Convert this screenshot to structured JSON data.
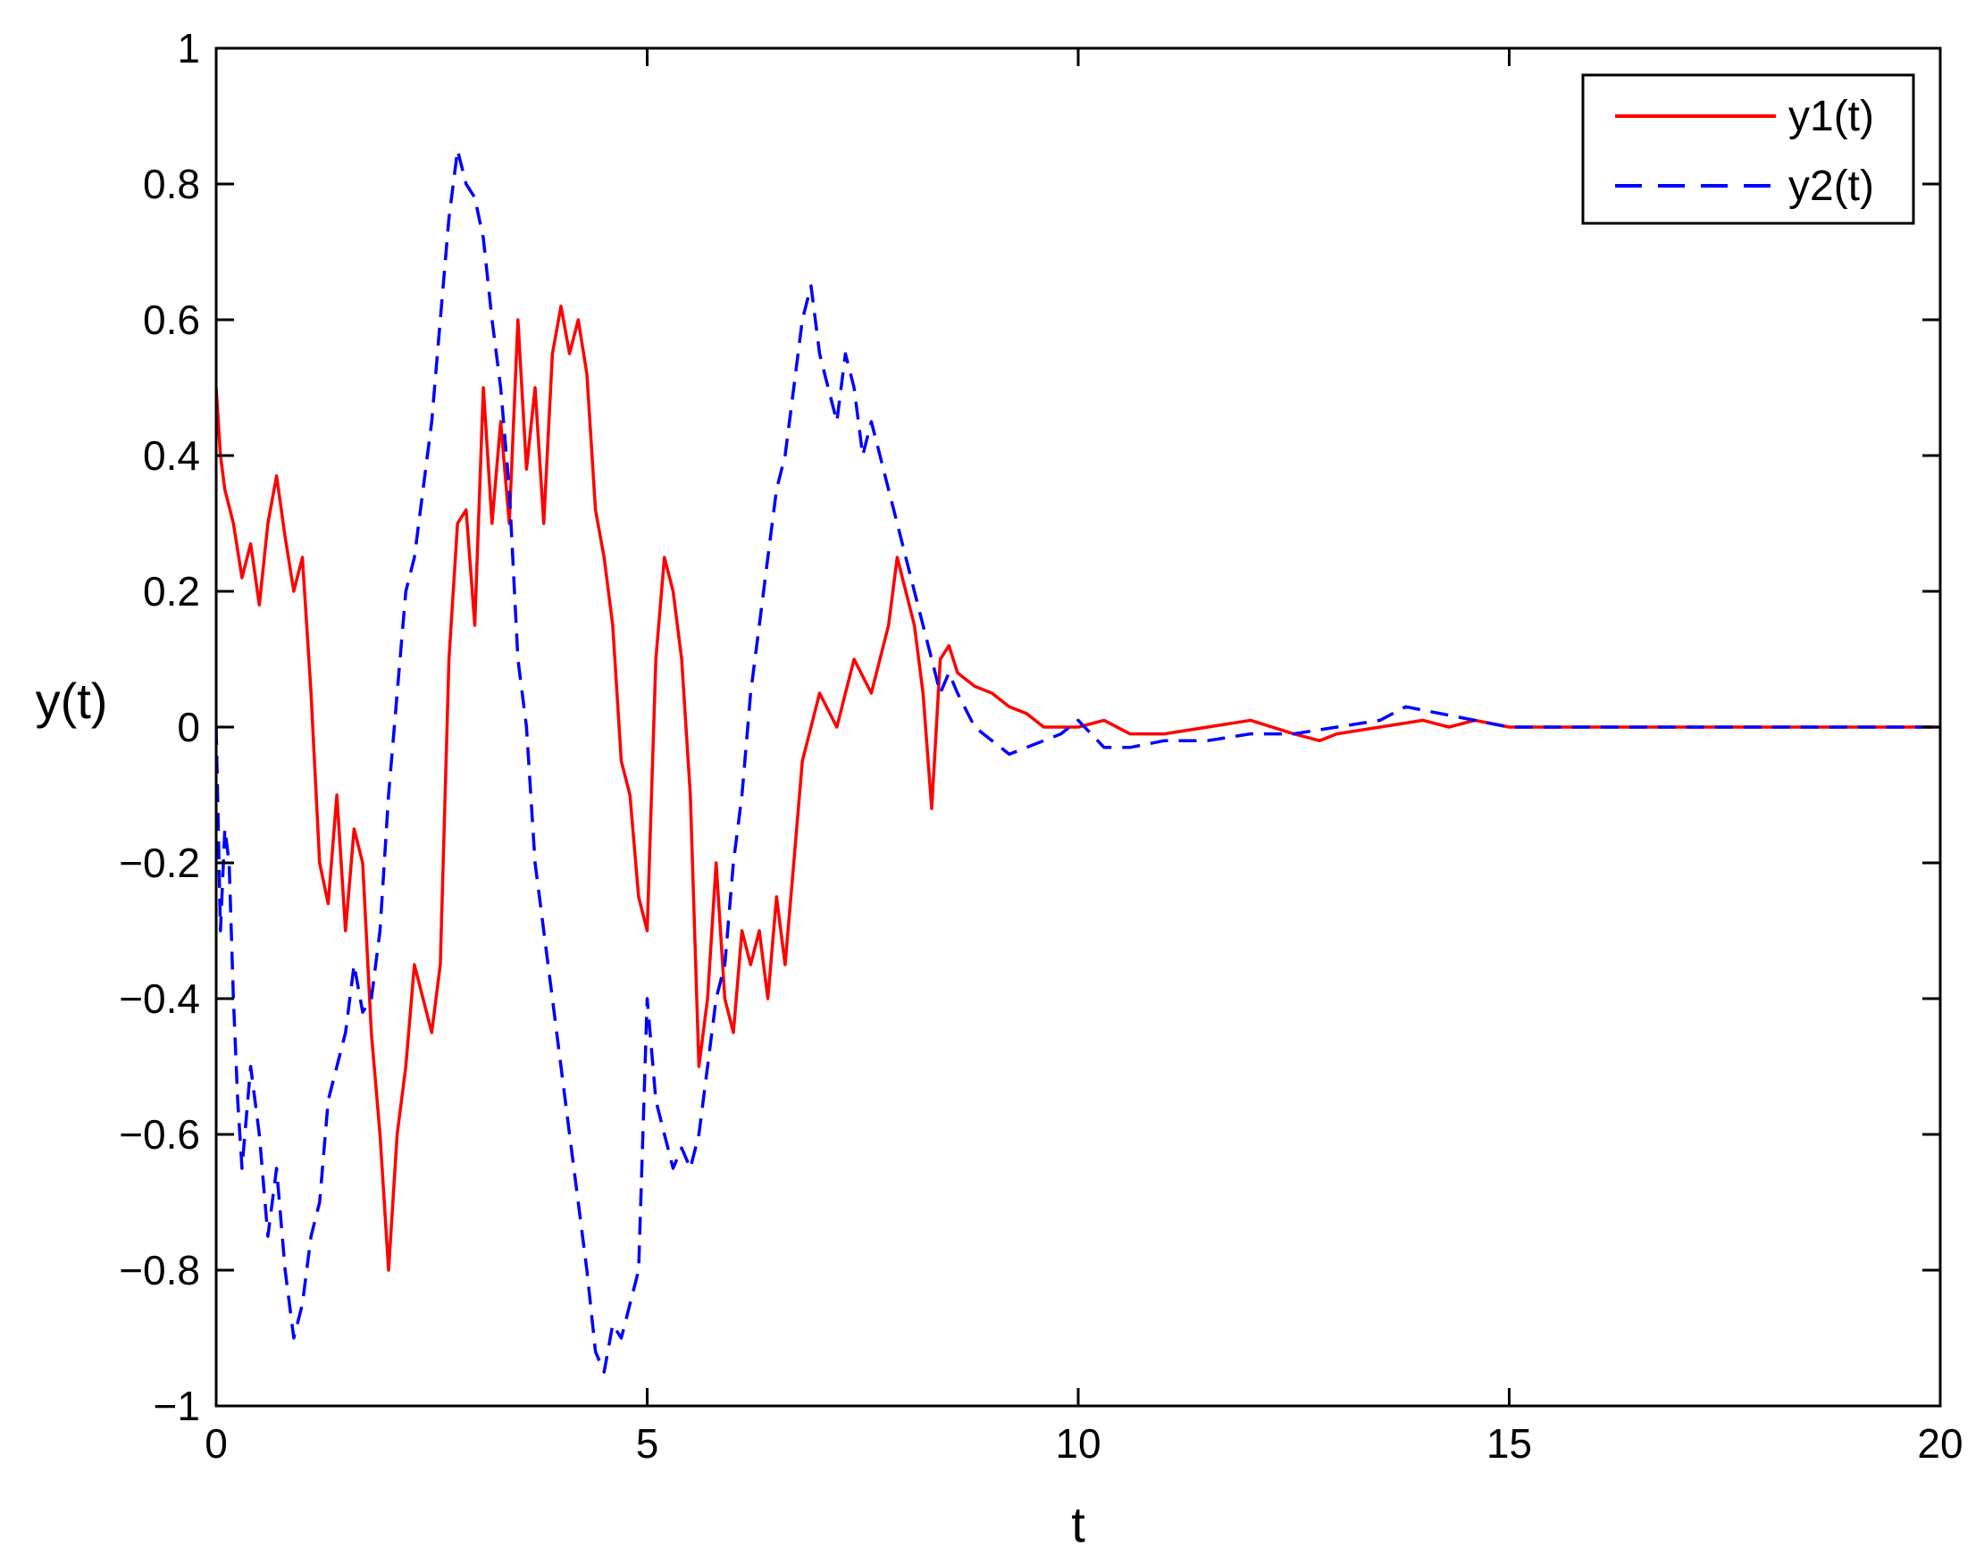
{
  "chart_data": {
    "type": "line",
    "title": "",
    "xlabel": "t",
    "ylabel": "y(t)",
    "xlim": [
      0,
      20
    ],
    "ylim": [
      -1,
      1
    ],
    "xticks": [
      0,
      5,
      10,
      15,
      20
    ],
    "xtick_labels": [
      "0",
      "5",
      "10",
      "15",
      "20"
    ],
    "yticks": [
      -1,
      -0.8,
      -0.6,
      -0.4,
      -0.2,
      0,
      0.2,
      0.4,
      0.6,
      0.8,
      1
    ],
    "ytick_labels": [
      "−1",
      "−0.8",
      "−0.6",
      "−0.4",
      "−0.2",
      "0",
      "0.2",
      "0.4",
      "0.6",
      "0.8",
      "1"
    ],
    "grid": false,
    "legend_position": "top-right",
    "series": [
      {
        "name": "y1(t)",
        "color": "#ff0000",
        "style": "solid",
        "x": [
          0,
          0.05,
          0.1,
          0.2,
          0.3,
          0.4,
          0.5,
          0.6,
          0.7,
          0.8,
          0.9,
          1.0,
          1.1,
          1.2,
          1.3,
          1.4,
          1.5,
          1.6,
          1.7,
          1.8,
          1.9,
          2.0,
          2.1,
          2.2,
          2.3,
          2.4,
          2.5,
          2.6,
          2.7,
          2.8,
          2.9,
          3.0,
          3.1,
          3.2,
          3.3,
          3.4,
          3.5,
          3.6,
          3.7,
          3.8,
          3.9,
          4.0,
          4.1,
          4.2,
          4.3,
          4.4,
          4.5,
          4.6,
          4.7,
          4.8,
          4.9,
          5.0,
          5.1,
          5.2,
          5.3,
          5.4,
          5.5,
          5.6,
          5.7,
          5.8,
          5.9,
          6.0,
          6.1,
          6.2,
          6.3,
          6.4,
          6.5,
          6.6,
          6.7,
          6.8,
          6.9,
          7.0,
          7.2,
          7.4,
          7.6,
          7.8,
          7.9,
          8.0,
          8.1,
          8.2,
          8.3,
          8.4,
          8.5,
          8.6,
          8.8,
          9.0,
          9.2,
          9.4,
          9.6,
          9.8,
          10.0,
          10.3,
          10.6,
          11.0,
          11.5,
          12.0,
          12.5,
          12.8,
          13.0,
          13.5,
          14.0,
          14.3,
          14.6,
          15.0,
          15.5,
          16.0,
          17.0,
          18.0,
          19.0,
          20.0
        ],
        "y": [
          0.5,
          0.4,
          0.35,
          0.3,
          0.22,
          0.27,
          0.18,
          0.3,
          0.37,
          0.28,
          0.2,
          0.25,
          0.05,
          -0.2,
          -0.26,
          -0.1,
          -0.3,
          -0.15,
          -0.2,
          -0.45,
          -0.6,
          -0.8,
          -0.6,
          -0.5,
          -0.35,
          -0.4,
          -0.45,
          -0.35,
          0.1,
          0.3,
          0.32,
          0.15,
          0.5,
          0.3,
          0.45,
          0.3,
          0.6,
          0.38,
          0.5,
          0.3,
          0.55,
          0.62,
          0.55,
          0.6,
          0.52,
          0.32,
          0.25,
          0.15,
          -0.05,
          -0.1,
          -0.25,
          -0.3,
          0.1,
          0.25,
          0.2,
          0.1,
          -0.1,
          -0.5,
          -0.4,
          -0.2,
          -0.4,
          -0.45,
          -0.3,
          -0.35,
          -0.3,
          -0.4,
          -0.25,
          -0.35,
          -0.2,
          -0.05,
          0.0,
          0.05,
          0.0,
          0.1,
          0.05,
          0.15,
          0.25,
          0.2,
          0.15,
          0.05,
          -0.12,
          0.1,
          0.12,
          0.08,
          0.06,
          0.05,
          0.03,
          0.02,
          0.0,
          0.0,
          0.0,
          0.01,
          -0.01,
          -0.01,
          0.0,
          0.01,
          -0.01,
          -0.02,
          -0.01,
          0.0,
          0.01,
          0.0,
          0.01,
          0.0,
          0.0,
          0.0,
          0.0,
          0.0,
          0.0,
          0.0
        ]
      },
      {
        "name": "y2(t)",
        "color": "#0000ff",
        "style": "dashed",
        "x": [
          0,
          0.05,
          0.1,
          0.15,
          0.2,
          0.25,
          0.3,
          0.4,
          0.5,
          0.6,
          0.7,
          0.8,
          0.9,
          1.0,
          1.1,
          1.2,
          1.3,
          1.4,
          1.5,
          1.6,
          1.7,
          1.8,
          1.9,
          2.0,
          2.1,
          2.2,
          2.3,
          2.4,
          2.5,
          2.6,
          2.7,
          2.8,
          2.9,
          3.0,
          3.1,
          3.2,
          3.3,
          3.4,
          3.5,
          3.6,
          3.7,
          3.8,
          3.9,
          4.0,
          4.1,
          4.2,
          4.3,
          4.4,
          4.5,
          4.6,
          4.7,
          4.8,
          4.9,
          5.0,
          5.1,
          5.2,
          5.3,
          5.4,
          5.5,
          5.6,
          5.7,
          5.8,
          5.9,
          6.0,
          6.1,
          6.2,
          6.3,
          6.4,
          6.5,
          6.6,
          6.7,
          6.8,
          6.9,
          7.0,
          7.1,
          7.2,
          7.3,
          7.4,
          7.5,
          7.6,
          7.7,
          7.8,
          7.9,
          8.0,
          8.1,
          8.2,
          8.3,
          8.4,
          8.5,
          8.6,
          8.8,
          9.0,
          9.2,
          9.4,
          9.6,
          9.8,
          10.0,
          10.3,
          10.6,
          11.0,
          11.5,
          12.0,
          12.5,
          13.0,
          13.5,
          13.8,
          14.2,
          14.6,
          15.0,
          15.5,
          16.0,
          17.0,
          18.0,
          19.0,
          20.0
        ],
        "y": [
          0.0,
          -0.3,
          -0.15,
          -0.2,
          -0.4,
          -0.55,
          -0.65,
          -0.5,
          -0.6,
          -0.75,
          -0.65,
          -0.8,
          -0.9,
          -0.85,
          -0.75,
          -0.7,
          -0.55,
          -0.5,
          -0.45,
          -0.35,
          -0.42,
          -0.4,
          -0.3,
          -0.1,
          0.05,
          0.2,
          0.25,
          0.35,
          0.45,
          0.6,
          0.75,
          0.85,
          0.8,
          0.78,
          0.72,
          0.6,
          0.5,
          0.35,
          0.1,
          0.0,
          -0.2,
          -0.3,
          -0.4,
          -0.5,
          -0.6,
          -0.7,
          -0.8,
          -0.92,
          -0.95,
          -0.88,
          -0.9,
          -0.85,
          -0.8,
          -0.4,
          -0.55,
          -0.6,
          -0.65,
          -0.62,
          -0.65,
          -0.6,
          -0.5,
          -0.4,
          -0.35,
          -0.2,
          -0.1,
          0.05,
          0.15,
          0.25,
          0.35,
          0.4,
          0.5,
          0.6,
          0.65,
          0.55,
          0.5,
          0.45,
          0.55,
          0.5,
          0.4,
          0.45,
          0.4,
          0.35,
          0.3,
          0.25,
          0.2,
          0.15,
          0.1,
          0.05,
          0.08,
          0.05,
          0.0,
          -0.02,
          -0.04,
          -0.03,
          -0.02,
          -0.01,
          0.01,
          -0.03,
          -0.03,
          -0.02,
          -0.02,
          -0.01,
          -0.01,
          0.0,
          0.01,
          0.03,
          0.02,
          0.01,
          0.0,
          0.0,
          0.0,
          0.0,
          0.0,
          0.0,
          0.0
        ]
      }
    ]
  }
}
